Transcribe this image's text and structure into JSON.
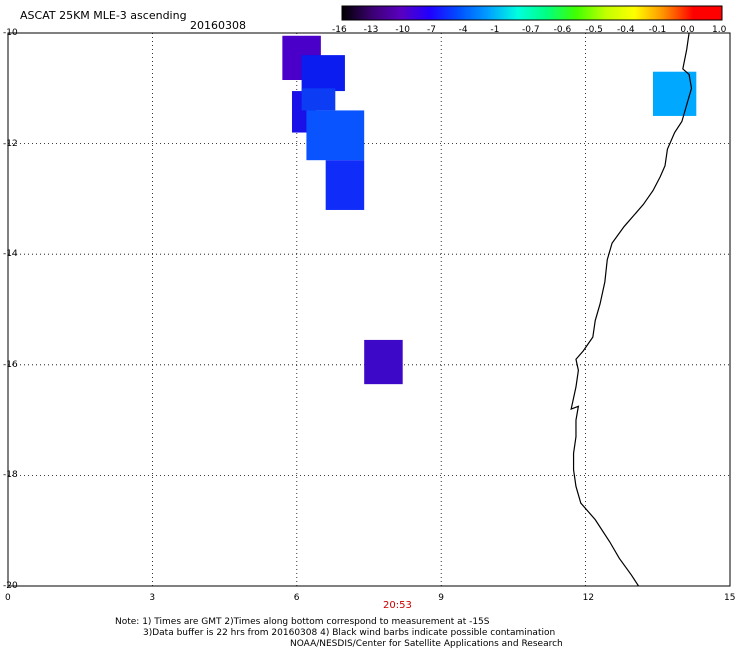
{
  "header": {
    "title": "ASCAT 25KM MLE-3 ascending",
    "date": "20160308"
  },
  "colorbar": {
    "labels": [
      "-16",
      "-13",
      "-10",
      "-7",
      "-4",
      "-1",
      "-0.7",
      "-0.6",
      "-0.5",
      "-0.4",
      "-0.1",
      "0.0",
      "1.0"
    ],
    "colors": [
      "#000000",
      "#3a0070",
      "#5a00c0",
      "#2000ff",
      "#0050ff",
      "#00a0ff",
      "#00ffe0",
      "#00ff80",
      "#40ff00",
      "#c0ff00",
      "#ffff00",
      "#ff9000",
      "#ff0000"
    ]
  },
  "axes": {
    "x_ticks": [
      "0",
      "3",
      "6",
      "9",
      "12",
      "15"
    ],
    "y_ticks": [
      "-10",
      "-12",
      "-14",
      "-16",
      "-18",
      "-20"
    ],
    "x_range": [
      0,
      15
    ],
    "y_range": [
      -20,
      -10
    ],
    "grid": "dotted"
  },
  "time_label": "20:53",
  "time_label_color": "#cc0000",
  "coastline_color": "#000000",
  "data_cells": [
    {
      "lon": [
        5.7,
        6.5
      ],
      "lat": [
        -10.05,
        -10.85
      ],
      "color": "#4a00c8"
    },
    {
      "lon": [
        6.1,
        7.0
      ],
      "lat": [
        -10.4,
        -11.05
      ],
      "color": "#0a1cf0"
    },
    {
      "lon": [
        5.9,
        6.4
      ],
      "lat": [
        -11.05,
        -11.8
      ],
      "color": "#1a10e8"
    },
    {
      "lon": [
        6.1,
        6.8
      ],
      "lat": [
        -11.0,
        -11.4
      ],
      "color": "#0c3cf4"
    },
    {
      "lon": [
        6.2,
        7.4
      ],
      "lat": [
        -11.4,
        -12.3
      ],
      "color": "#0a54ff"
    },
    {
      "lon": [
        6.6,
        7.4
      ],
      "lat": [
        -12.3,
        -13.2
      ],
      "color": "#0f2cf8"
    },
    {
      "lon": [
        7.4,
        8.2
      ],
      "lat": [
        -15.55,
        -16.35
      ],
      "color": "#3e08c8"
    },
    {
      "lon": [
        13.4,
        14.3
      ],
      "lat": [
        -10.7,
        -11.5
      ],
      "color": "#00a8ff"
    }
  ],
  "notes": [
    "Note: 1) Times are GMT 2)Times along bottom correspond to measurement at -15S",
    "3)Data buffer is 22 hrs from 20160308 4) Black wind barbs indicate possible contamination",
    "NOAA/NESDIS/Center for Satellite Applications and Research"
  ]
}
